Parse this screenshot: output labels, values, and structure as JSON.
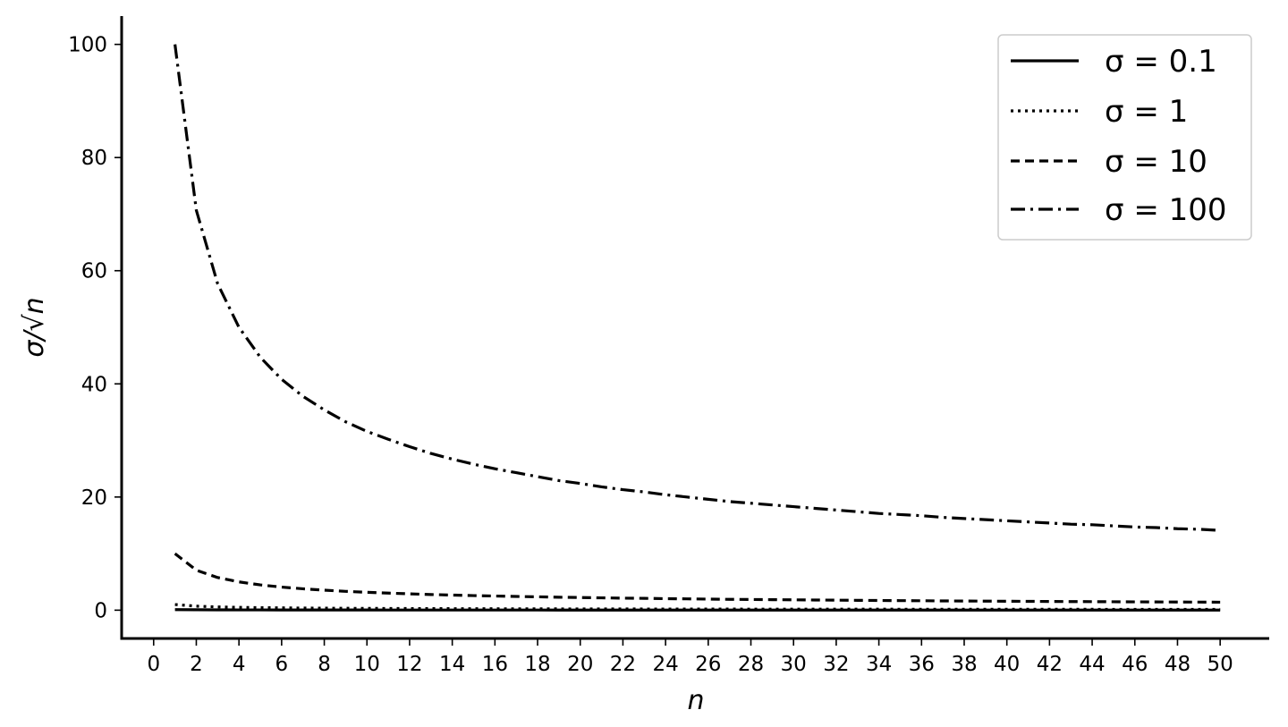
{
  "chart_data": {
    "type": "line",
    "title": "",
    "xlabel": "n",
    "ylabel": "σ/√n",
    "xlim": [
      -1.5,
      52.3
    ],
    "ylim": [
      -5,
      105
    ],
    "xticks": [
      0,
      2,
      4,
      6,
      8,
      10,
      12,
      14,
      16,
      18,
      20,
      22,
      24,
      26,
      28,
      30,
      32,
      34,
      36,
      38,
      40,
      42,
      44,
      46,
      48,
      50
    ],
    "yticks": [
      0,
      20,
      40,
      60,
      80,
      100
    ],
    "grid": false,
    "legend_position": "top-right",
    "x": [
      1,
      2,
      3,
      4,
      5,
      6,
      7,
      8,
      9,
      10,
      11,
      12,
      13,
      14,
      15,
      16,
      17,
      18,
      19,
      20,
      21,
      22,
      23,
      24,
      25,
      26,
      27,
      28,
      29,
      30,
      31,
      32,
      33,
      34,
      35,
      36,
      37,
      38,
      39,
      40,
      41,
      42,
      43,
      44,
      45,
      46,
      47,
      48,
      49,
      50
    ],
    "series": [
      {
        "name": "σ = 0.1",
        "dash": "solid",
        "values": [
          0.1,
          0.071,
          0.058,
          0.05,
          0.045,
          0.041,
          0.038,
          0.035,
          0.033,
          0.032,
          0.03,
          0.029,
          0.028,
          0.027,
          0.026,
          0.025,
          0.024,
          0.024,
          0.023,
          0.022,
          0.022,
          0.021,
          0.021,
          0.02,
          0.02,
          0.02,
          0.019,
          0.019,
          0.019,
          0.018,
          0.018,
          0.018,
          0.017,
          0.017,
          0.017,
          0.017,
          0.016,
          0.016,
          0.016,
          0.016,
          0.016,
          0.015,
          0.015,
          0.015,
          0.015,
          0.015,
          0.015,
          0.014,
          0.014,
          0.014
        ]
      },
      {
        "name": "σ = 1",
        "dash": "dotted",
        "values": [
          1.0,
          0.707,
          0.577,
          0.5,
          0.447,
          0.408,
          0.378,
          0.354,
          0.333,
          0.316,
          0.302,
          0.289,
          0.277,
          0.267,
          0.258,
          0.25,
          0.243,
          0.236,
          0.229,
          0.224,
          0.218,
          0.213,
          0.209,
          0.204,
          0.2,
          0.196,
          0.192,
          0.189,
          0.186,
          0.183,
          0.18,
          0.177,
          0.174,
          0.171,
          0.169,
          0.167,
          0.164,
          0.162,
          0.16,
          0.158,
          0.156,
          0.154,
          0.152,
          0.151,
          0.149,
          0.147,
          0.146,
          0.144,
          0.143,
          0.141
        ]
      },
      {
        "name": "σ = 10",
        "dash": "dashed",
        "values": [
          10.0,
          7.07,
          5.77,
          5.0,
          4.47,
          4.08,
          3.78,
          3.54,
          3.33,
          3.16,
          3.02,
          2.89,
          2.77,
          2.67,
          2.58,
          2.5,
          2.43,
          2.36,
          2.29,
          2.24,
          2.18,
          2.13,
          2.09,
          2.04,
          2.0,
          1.96,
          1.92,
          1.89,
          1.86,
          1.83,
          1.8,
          1.77,
          1.74,
          1.71,
          1.69,
          1.67,
          1.64,
          1.62,
          1.6,
          1.58,
          1.56,
          1.54,
          1.52,
          1.51,
          1.49,
          1.47,
          1.46,
          1.44,
          1.43,
          1.41
        ]
      },
      {
        "name": "σ = 100",
        "dash": "dashdot",
        "values": [
          100.0,
          70.7,
          57.7,
          50.0,
          44.7,
          40.8,
          37.8,
          35.4,
          33.3,
          31.6,
          30.2,
          28.9,
          27.7,
          26.7,
          25.8,
          25.0,
          24.3,
          23.6,
          22.9,
          22.4,
          21.8,
          21.3,
          20.9,
          20.4,
          20.0,
          19.6,
          19.2,
          18.9,
          18.6,
          18.3,
          18.0,
          17.7,
          17.4,
          17.1,
          16.9,
          16.7,
          16.4,
          16.2,
          16.0,
          15.8,
          15.6,
          15.4,
          15.2,
          15.1,
          14.9,
          14.7,
          14.6,
          14.4,
          14.3,
          14.1
        ]
      }
    ]
  }
}
